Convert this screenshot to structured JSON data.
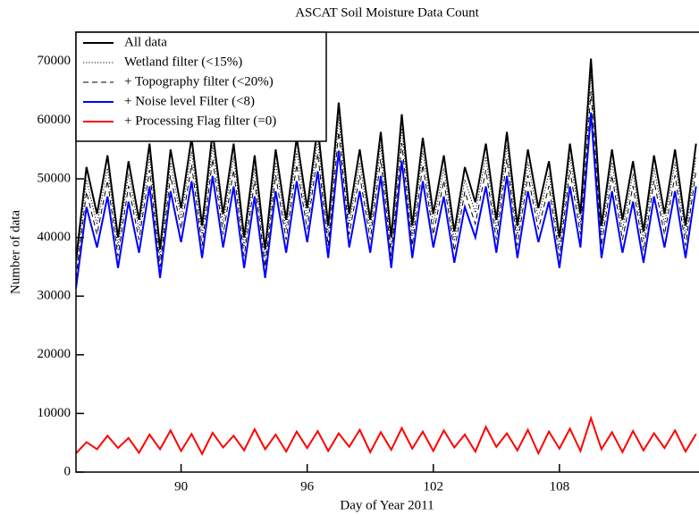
{
  "chart_data": {
    "type": "line",
    "title": "ASCAT Soil Moisture Data Count",
    "xlabel": "Day of Year 2011",
    "ylabel": "Number of data",
    "xlim": [
      85,
      114.64
    ],
    "ylim": [
      0,
      75000
    ],
    "xticks": [
      90,
      96,
      102,
      108
    ],
    "yticks": [
      0,
      10000,
      20000,
      30000,
      40000,
      50000,
      60000,
      70000
    ],
    "legend": "upper left",
    "x": [
      85,
      85.5,
      86,
      86.5,
      87,
      87.5,
      88,
      88.5,
      89,
      89.5,
      90,
      90.5,
      91,
      91.5,
      92,
      92.5,
      93,
      93.5,
      94,
      94.5,
      95,
      95.5,
      96,
      96.5,
      97,
      97.5,
      98,
      98.5,
      99,
      99.5,
      100,
      100.5,
      101,
      101.5,
      102,
      102.5,
      103,
      103.5,
      104,
      104.5,
      105,
      105.5,
      106,
      106.5,
      107,
      107.5,
      108,
      108.5,
      109,
      109.5,
      110,
      110.5,
      111,
      111.5,
      112,
      112.5,
      113,
      113.5,
      114,
      114.5
    ],
    "series": [
      {
        "name": "All data",
        "color": "#000000",
        "style": "solid",
        "values": [
          36000,
          52000,
          44000,
          54000,
          40000,
          53000,
          43000,
          56000,
          38000,
          55000,
          45000,
          57000,
          42000,
          58000,
          44000,
          56000,
          40000,
          54000,
          38000,
          55000,
          43000,
          57000,
          45000,
          59000,
          42000,
          63000,
          44000,
          55000,
          43000,
          58000,
          40000,
          61000,
          42000,
          57000,
          44000,
          54000,
          41000,
          52000,
          46000,
          56000,
          43000,
          58000,
          42000,
          55000,
          45000,
          53000,
          40000,
          56000,
          44000,
          70500,
          42000,
          55000,
          43000,
          53000,
          41000,
          54000,
          44000,
          55000,
          42000,
          56000
        ]
      },
      {
        "name": "Wetland filter (<15%)",
        "color": "#000000",
        "style": "dotted",
        "values": [
          34600,
          49900,
          42200,
          51800,
          38400,
          50900,
          41300,
          53800,
          36500,
          52800,
          43200,
          54700,
          40300,
          55700,
          42200,
          53800,
          38400,
          51800,
          36500,
          52800,
          41300,
          54700,
          43200,
          56600,
          40300,
          60500,
          42200,
          52800,
          41300,
          55700,
          38400,
          58600,
          40300,
          54700,
          42200,
          51800,
          39400,
          49900,
          44200,
          53800,
          41300,
          55700,
          40300,
          52800,
          43200,
          50900,
          38400,
          53800,
          42200,
          67700,
          40300,
          52800,
          41300,
          50900,
          39400,
          51800,
          42200,
          52800,
          40300,
          53800
        ]
      },
      {
        "name": "+ Topography filter (<20%)",
        "color": "#000000",
        "style": "dashed",
        "values": [
          33100,
          47800,
          40500,
          49700,
          36800,
          48800,
          39600,
          51500,
          35000,
          50600,
          41400,
          52400,
          38600,
          53400,
          40500,
          51500,
          36800,
          49700,
          35000,
          50600,
          39600,
          52400,
          41400,
          54300,
          38600,
          58000,
          40500,
          50600,
          39600,
          53400,
          36800,
          56100,
          38600,
          52400,
          40500,
          49700,
          37700,
          47800,
          42300,
          51500,
          39600,
          53400,
          38600,
          50600,
          41400,
          48800,
          36800,
          51500,
          40500,
          64900,
          38600,
          50600,
          39600,
          48800,
          37700,
          49700,
          40500,
          50600,
          38600,
          51500
        ]
      },
      {
        "name": "+ Noise level Filter (<8)",
        "color": "#0000ff",
        "style": "solid",
        "values": [
          31300,
          45200,
          38300,
          47000,
          34800,
          46100,
          37400,
          48700,
          33100,
          47900,
          39200,
          49600,
          36500,
          50500,
          38300,
          48700,
          34800,
          47000,
          33100,
          47900,
          37400,
          49600,
          39200,
          51300,
          36500,
          54800,
          38300,
          47900,
          37400,
          50500,
          34800,
          53100,
          36500,
          49600,
          38300,
          47000,
          35700,
          45200,
          40000,
          48700,
          37400,
          50500,
          36500,
          47900,
          39200,
          46100,
          34800,
          48700,
          38300,
          61300,
          36500,
          47900,
          37400,
          46100,
          35700,
          47000,
          38300,
          47900,
          36500,
          48700
        ]
      },
      {
        "name": "+ Processing Flag filter (=0)",
        "color": "#ff0000",
        "style": "solid",
        "values": [
          3200,
          5100,
          3900,
          6200,
          4100,
          5800,
          3300,
          6400,
          3900,
          7100,
          3600,
          6500,
          3100,
          6700,
          4200,
          6200,
          3700,
          7300,
          3900,
          6400,
          3500,
          6900,
          4100,
          7000,
          3600,
          6600,
          4300,
          7200,
          3400,
          6800,
          3800,
          7500,
          4000,
          6900,
          3600,
          7100,
          4200,
          6400,
          3500,
          7700,
          4300,
          6600,
          3700,
          7200,
          3200,
          6900,
          4000,
          7400,
          3600,
          9200,
          3900,
          6800,
          3400,
          7000,
          3700,
          6600,
          4100,
          7100,
          3500,
          6500
        ]
      }
    ]
  }
}
